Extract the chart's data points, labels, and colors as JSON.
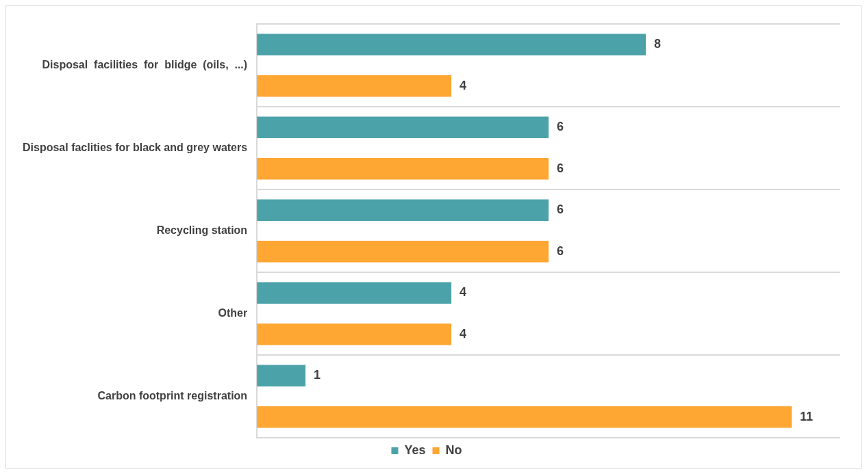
{
  "chart_data": {
    "type": "bar",
    "orientation": "horizontal",
    "categories": [
      "Disposal  facilities  for  blidge  (oils,  ...)",
      "Disposal faclities for black and grey waters",
      "Recycling station",
      "Other",
      "Carbon footprint registration"
    ],
    "series": [
      {
        "name": "Yes",
        "color": "#4ba3a9",
        "values": [
          8,
          6,
          6,
          4,
          1
        ]
      },
      {
        "name": "No",
        "color": "#ffa633",
        "values": [
          4,
          6,
          6,
          4,
          11
        ]
      }
    ],
    "data_labels": true,
    "grid": "y",
    "legend": "bottom"
  }
}
